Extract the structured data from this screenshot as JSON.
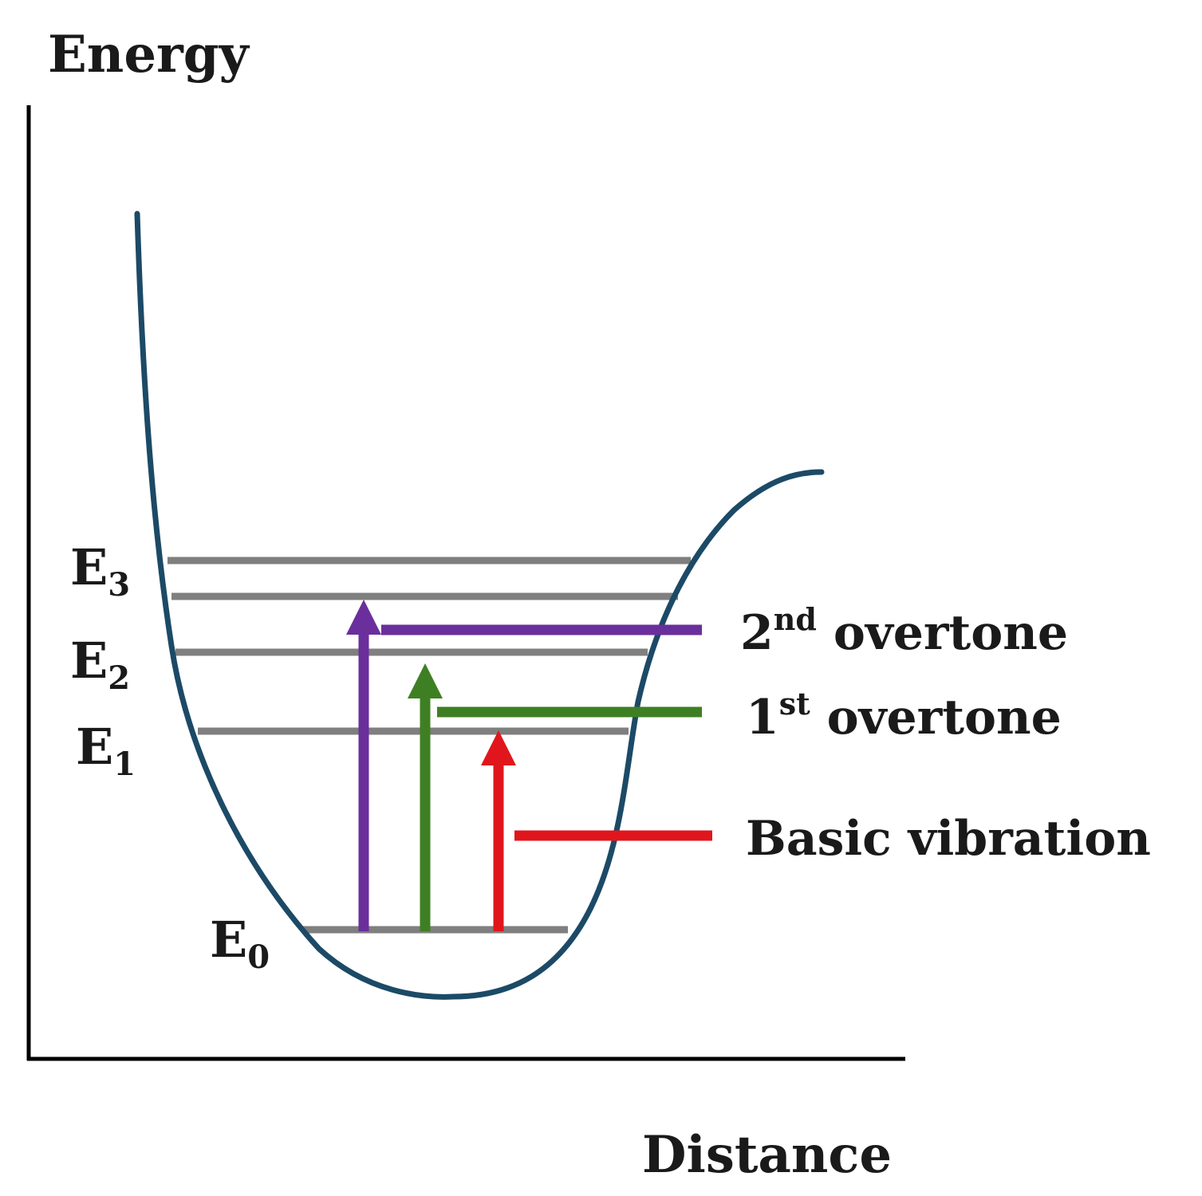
{
  "axes": {
    "y_label": "Energy",
    "x_label": "Distance"
  },
  "levels": [
    {
      "main": "E",
      "sub": "3"
    },
    {
      "main": "E",
      "sub": "2"
    },
    {
      "main": "E",
      "sub": "1"
    },
    {
      "main": "E",
      "sub": "0"
    }
  ],
  "transitions": [
    {
      "number": "2",
      "sup": "nd",
      "text": " overtone",
      "color": "#6a2f9c"
    },
    {
      "number": "1",
      "sup": "st",
      "text": " overtone",
      "color": "#3f7f23"
    },
    {
      "text": "Basic vibration",
      "color": "#e0161c"
    }
  ],
  "colors": {
    "curve": "#1c4a66",
    "level_line": "#7f7f7f",
    "axis": "#000000"
  }
}
